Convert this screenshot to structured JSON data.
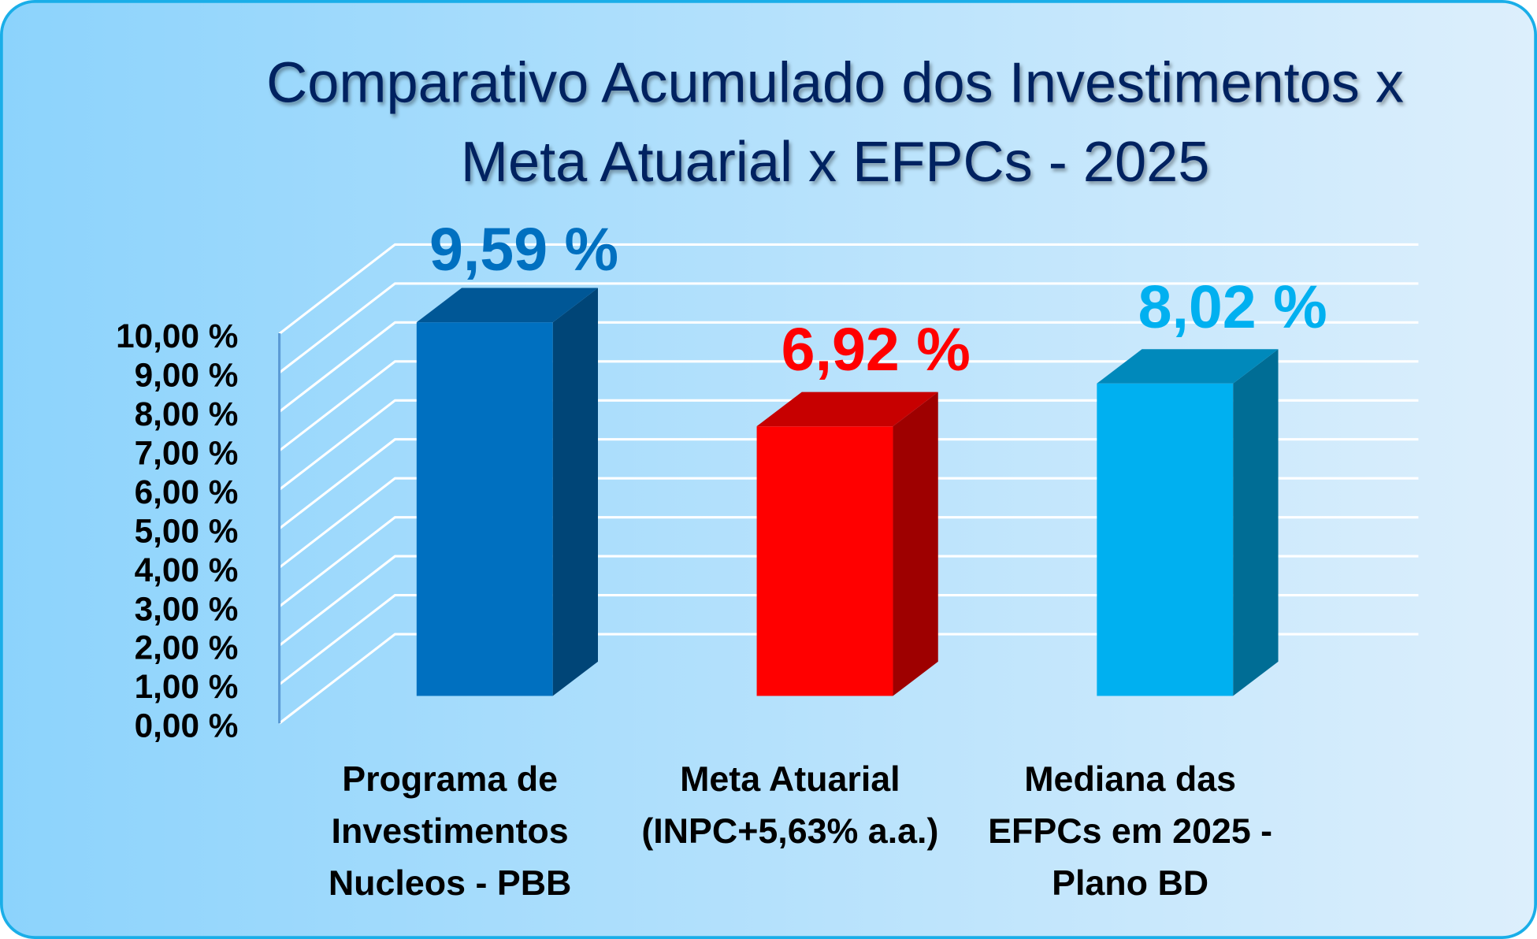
{
  "chart_data": {
    "type": "bar",
    "style": "3d-column",
    "title_lines": [
      "Comparativo Acumulado dos Investimentos x",
      "Meta Atuarial x  EFPCs - 2025"
    ],
    "categories": [
      [
        "Programa de",
        "Investimentos",
        "Nucleos  - PBB"
      ],
      [
        "Meta Atuarial",
        "(INPC+5,63% a.a.)"
      ],
      [
        "Mediana das",
        "EFPCs em 2025 -",
        "Plano BD"
      ]
    ],
    "values": [
      9.59,
      6.92,
      8.02
    ],
    "data_labels": [
      "9,59 %",
      "6,92 %",
      "8,02 %"
    ],
    "bar_colors": [
      "#0070c0",
      "#ff0000",
      "#00b0f0"
    ],
    "label_colors": [
      "#0070c0",
      "#ff0000",
      "#00b0f0"
    ],
    "yticks": [
      0,
      1,
      2,
      3,
      4,
      5,
      6,
      7,
      8,
      9,
      10
    ],
    "ytick_labels": [
      "0,00 %",
      "1,00 %",
      "2,00 %",
      "3,00 %",
      "4,00 %",
      "5,00 %",
      "6,00 %",
      "7,00 %",
      "8,00 %",
      "9,00 %",
      "10,00 %"
    ],
    "ylim": [
      0,
      10
    ],
    "grid": true,
    "xlabel": "",
    "ylabel": "",
    "title_color": "#002060"
  }
}
